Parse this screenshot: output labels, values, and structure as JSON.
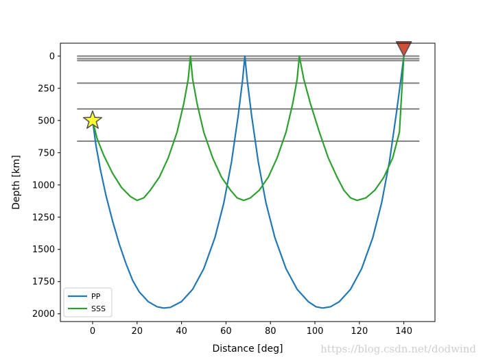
{
  "chart_data": {
    "type": "line",
    "xlabel": "Distance [deg]",
    "ylabel": "Depth [km]",
    "xlim": [
      -14.5,
      154
    ],
    "ylim": [
      2060,
      -100
    ],
    "y_inverted": true,
    "xticks": [
      0,
      20,
      40,
      60,
      80,
      100,
      120,
      140
    ],
    "yticks": [
      0,
      250,
      500,
      750,
      1000,
      1250,
      1500,
      1750,
      2000
    ],
    "grid": false,
    "legend_position": "lower-left",
    "series": [
      {
        "name": "PP",
        "color": "#1f77b4",
        "x": [
          0,
          1.5,
          3.5,
          6,
          9,
          12,
          15,
          18,
          21,
          25,
          29,
          32,
          35,
          40,
          45,
          50,
          55,
          59,
          62.5,
          65.5,
          67.5,
          68.5,
          69.5,
          71.5,
          74.5,
          78,
          82,
          87,
          92,
          97,
          100.5,
          103.5,
          107,
          111,
          116,
          121,
          126,
          130,
          133.5,
          136.5,
          138.7,
          140
        ],
        "y": [
          500,
          690,
          880,
          1080,
          1280,
          1460,
          1610,
          1740,
          1830,
          1905,
          1945,
          1955,
          1950,
          1905,
          1810,
          1650,
          1410,
          1140,
          820,
          460,
          180,
          0,
          180,
          460,
          820,
          1140,
          1410,
          1650,
          1810,
          1905,
          1945,
          1955,
          1945,
          1905,
          1810,
          1650,
          1410,
          1140,
          820,
          460,
          180,
          0
        ]
      },
      {
        "name": "SSS",
        "color": "#2ca02c",
        "x": [
          0,
          2,
          5,
          9,
          13,
          17,
          20,
          23,
          26,
          30,
          34,
          38,
          41,
          43,
          44,
          45,
          47,
          50,
          54,
          58,
          62,
          65,
          68,
          71,
          75,
          79,
          83,
          87,
          90,
          92,
          93,
          95,
          98,
          102,
          106,
          110,
          113,
          116,
          119,
          123,
          127,
          131,
          135,
          138,
          140
        ],
        "y": [
          500,
          640,
          770,
          910,
          1020,
          1090,
          1120,
          1100,
          1040,
          940,
          790,
          590,
          370,
          180,
          0,
          180,
          370,
          590,
          790,
          940,
          1040,
          1100,
          1120,
          1100,
          1040,
          940,
          790,
          590,
          370,
          180,
          0,
          180,
          370,
          590,
          790,
          940,
          1040,
          1100,
          1120,
          1100,
          1040,
          940,
          790,
          590,
          0
        ]
      }
    ],
    "layers": [
      {
        "depth": 0,
        "color": "#808080"
      },
      {
        "depth": 20,
        "color": "#808080"
      },
      {
        "depth": 35,
        "color": "#808080"
      },
      {
        "depth": 210,
        "color": "#808080"
      },
      {
        "depth": 410,
        "color": "#808080"
      },
      {
        "depth": 660,
        "color": "#808080"
      }
    ],
    "layer_xrange": [
      -7,
      147
    ],
    "source_marker": {
      "shape": "star",
      "x": 0,
      "y": 500,
      "fill": "#ffff33",
      "stroke": "#555555"
    },
    "receiver_marker": {
      "shape": "triangle-down",
      "x": 140,
      "y": 0,
      "fill": "#d1503a",
      "stroke": "#555555"
    }
  },
  "watermark": "https://blog.csdn.net/dodwind"
}
